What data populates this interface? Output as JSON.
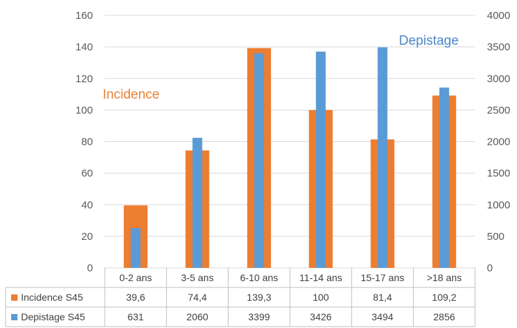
{
  "chart_data": {
    "type": "bar",
    "categories": [
      "0-2 ans",
      "3-5 ans",
      "6-10 ans",
      "11-14 ans",
      "15-17 ans",
      ">18 ans"
    ],
    "series": [
      {
        "name": "Incidence S45",
        "axis": "left",
        "color": "#ED7D31",
        "values": [
          39.6,
          74.4,
          139.3,
          100,
          81.4,
          109.2
        ],
        "labels": [
          "39,6",
          "74,4",
          "139,3",
          "100",
          "81,4",
          "109,2"
        ]
      },
      {
        "name": "Depistage S45",
        "axis": "right",
        "color": "#5B9BD5",
        "values": [
          631,
          2060,
          3399,
          3426,
          3494,
          2856
        ],
        "labels": [
          "631",
          "2060",
          "3399",
          "3426",
          "3494",
          "2856"
        ]
      }
    ],
    "ylim_left": [
      0,
      160
    ],
    "yticks_left": [
      "0",
      "20",
      "40",
      "60",
      "80",
      "100",
      "120",
      "140",
      "160"
    ],
    "ylim_right": [
      0,
      4000
    ],
    "yticks_right": [
      "0",
      "500",
      "1000",
      "1500",
      "2000",
      "2500",
      "3000",
      "3500",
      "4000"
    ],
    "annotations": {
      "left": "Incidence",
      "right": "Depistage"
    },
    "grid": true,
    "legend": "data-table"
  }
}
